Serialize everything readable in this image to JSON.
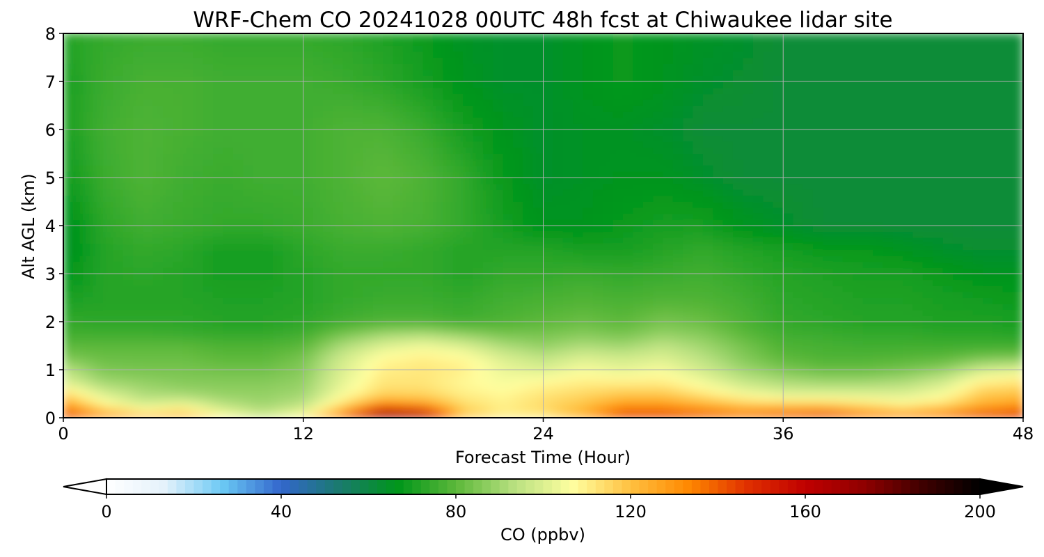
{
  "chart_data": {
    "type": "heatmap",
    "title": "WRF-Chem CO  20241028 00UTC 48h fcst at Chiwaukee lidar site",
    "xlabel": "Forecast Time (Hour)",
    "ylabel": "Alt AGL (km)",
    "xlim": [
      0,
      48
    ],
    "ylim": [
      0,
      8
    ],
    "x_ticks": [
      0,
      12,
      24,
      36,
      48
    ],
    "y_ticks": [
      0,
      1,
      2,
      3,
      4,
      5,
      6,
      7,
      8
    ],
    "grid": true,
    "colorbar": {
      "label": "CO  (ppbv)",
      "range": [
        0,
        200
      ],
      "ticks": [
        0,
        40,
        80,
        120,
        160,
        200
      ],
      "extend": "both",
      "colors": [
        "#ffffff",
        "#e4f2fb",
        "#6ac8f4",
        "#3366cc",
        "#1a7a6e",
        "#00961a",
        "#5cb83a",
        "#b8e080",
        "#ffffa0",
        "#ffc040",
        "#ff8800",
        "#e03000",
        "#c00000",
        "#900000",
        "#400000",
        "#000000"
      ]
    },
    "series_description": "CO mixing ratio vs forecast hour and altitude",
    "x": [
      0,
      2,
      4,
      6,
      8,
      10,
      12,
      14,
      16,
      18,
      20,
      22,
      24,
      26,
      28,
      30,
      32,
      34,
      36,
      38,
      40,
      42,
      44,
      46,
      48
    ],
    "y": [
      0,
      0.25,
      0.5,
      0.75,
      1,
      1.25,
      1.5,
      1.75,
      2,
      2.5,
      3,
      3.5,
      4,
      5,
      6,
      7,
      8
    ],
    "z": [
      [
        150,
        135,
        125,
        125,
        110,
        100,
        110,
        140,
        185,
        175,
        120,
        110,
        110,
        125,
        150,
        150,
        145,
        140,
        145,
        150,
        140,
        135,
        140,
        150,
        155
      ],
      [
        130,
        110,
        100,
        105,
        95,
        90,
        95,
        115,
        135,
        130,
        115,
        110,
        115,
        120,
        130,
        130,
        125,
        120,
        120,
        120,
        115,
        110,
        115,
        125,
        130
      ],
      [
        115,
        100,
        92,
        90,
        88,
        88,
        90,
        105,
        115,
        115,
        110,
        108,
        112,
        115,
        118,
        118,
        112,
        105,
        100,
        100,
        100,
        100,
        105,
        118,
        120
      ],
      [
        100,
        90,
        88,
        86,
        86,
        86,
        88,
        102,
        112,
        112,
        108,
        105,
        108,
        110,
        110,
        110,
        104,
        96,
        92,
        90,
        90,
        92,
        98,
        110,
        112
      ],
      [
        95,
        85,
        84,
        84,
        83,
        83,
        86,
        100,
        110,
        112,
        110,
        103,
        100,
        105,
        102,
        105,
        98,
        90,
        85,
        82,
        82,
        84,
        88,
        98,
        102
      ],
      [
        85,
        82,
        82,
        82,
        80,
        80,
        84,
        98,
        108,
        110,
        108,
        100,
        95,
        100,
        98,
        100,
        94,
        86,
        80,
        78,
        78,
        79,
        80,
        84,
        85
      ],
      [
        80,
        80,
        80,
        80,
        78,
        78,
        80,
        92,
        100,
        104,
        100,
        92,
        88,
        92,
        90,
        95,
        90,
        84,
        78,
        77,
        76,
        76,
        76,
        76,
        76
      ],
      [
        76,
        76,
        76,
        75,
        74,
        74,
        76,
        84,
        90,
        92,
        88,
        84,
        84,
        86,
        84,
        88,
        86,
        80,
        76,
        75,
        74,
        74,
        73,
        73,
        72
      ],
      [
        74,
        73,
        73,
        73,
        72,
        72,
        73,
        76,
        78,
        78,
        76,
        78,
        80,
        82,
        80,
        84,
        82,
        78,
        74,
        73,
        72,
        72,
        71,
        71,
        70
      ],
      [
        70,
        72,
        72,
        72,
        71,
        71,
        72,
        74,
        75,
        75,
        74,
        76,
        77,
        78,
        77,
        78,
        78,
        76,
        73,
        72,
        71,
        71,
        70,
        69,
        68
      ],
      [
        66,
        72,
        73,
        72,
        70,
        70,
        72,
        74,
        74,
        74,
        72,
        74,
        74,
        75,
        74,
        75,
        76,
        74,
        72,
        71,
        70,
        70,
        68,
        66,
        66
      ],
      [
        64,
        72,
        74,
        73,
        70,
        70,
        73,
        75,
        75,
        74,
        72,
        72,
        72,
        70,
        70,
        72,
        74,
        72,
        70,
        68,
        68,
        66,
        64,
        63,
        63
      ],
      [
        64,
        73,
        76,
        75,
        74,
        74,
        75,
        77,
        78,
        77,
        74,
        70,
        66,
        66,
        68,
        70,
        70,
        66,
        64,
        62,
        62,
        62,
        62,
        62,
        62
      ],
      [
        68,
        75,
        78,
        76,
        75,
        76,
        76,
        78,
        80,
        78,
        74,
        68,
        64,
        65,
        66,
        66,
        64,
        62,
        62,
        62,
        62,
        62,
        62,
        62,
        62
      ],
      [
        70,
        76,
        78,
        77,
        76,
        76,
        76,
        78,
        78,
        75,
        70,
        66,
        64,
        65,
        65,
        64,
        62,
        62,
        62,
        62,
        62,
        62,
        62,
        62,
        62
      ],
      [
        70,
        75,
        77,
        77,
        76,
        76,
        76,
        75,
        73,
        70,
        66,
        64,
        64,
        66,
        68,
        66,
        64,
        63,
        62,
        62,
        62,
        62,
        62,
        62,
        62
      ],
      [
        72,
        74,
        75,
        75,
        74,
        74,
        74,
        73,
        71,
        68,
        65,
        64,
        64,
        66,
        68,
        66,
        65,
        64,
        62,
        62,
        62,
        62,
        62,
        62,
        62
      ]
    ]
  }
}
